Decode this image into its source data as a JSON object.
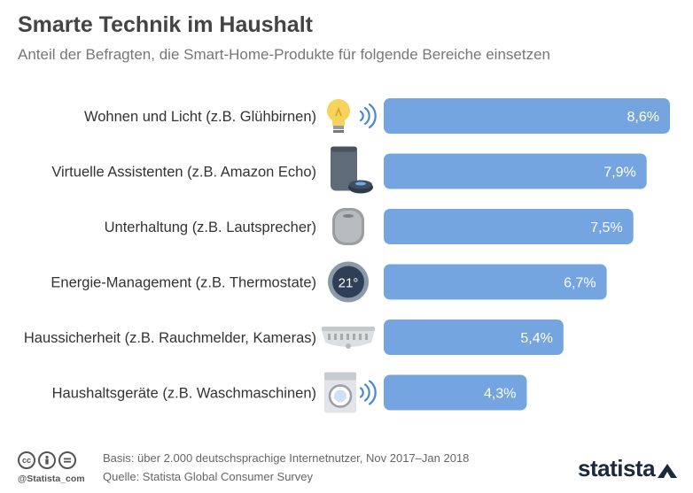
{
  "header": {
    "title": "Smarte Technik im Haushalt",
    "subtitle": "Anteil der Befragten, die Smart-Home-Produkte für folgende Bereiche einsetzen"
  },
  "chart_data": {
    "type": "bar",
    "orientation": "horizontal",
    "title": "Smarte Technik im Haushalt",
    "subtitle": "Anteil der Befragten, die Smart-Home-Produkte für folgende Bereiche einsetzen",
    "xlabel": "",
    "ylabel": "",
    "xlim": [
      0,
      8.6
    ],
    "categories": [
      "Wohnen und Licht (z.B. Glühbirnen)",
      "Virtuelle Assistenten (z.B. Amazon Echo)",
      "Unterhaltung (z.B. Lautsprecher)",
      "Energie-Management (z.B. Thermostate)",
      "Haussicherheit (z.B. Rauchmelder, Kameras)",
      "Haushaltsgeräte (z.B. Waschmaschinen)"
    ],
    "values": [
      8.6,
      7.9,
      7.5,
      6.7,
      5.4,
      4.3
    ],
    "value_labels": [
      "8,6%",
      "7,9%",
      "7,5%",
      "6,7%",
      "5,4%",
      "4,3%"
    ],
    "icons": [
      "lightbulb-icon",
      "smart-speaker-icon",
      "speaker-icon",
      "thermostat-icon",
      "smoke-detector-icon",
      "washing-machine-icon"
    ],
    "thermostat_display": "21°",
    "bar_color": "#75a5e0",
    "grid": false,
    "legend": "none"
  },
  "footer": {
    "basis": "Basis: über 2.000 deutschsprachige Internetnutzer, Nov 2017–Jan 2018",
    "source": "Quelle: Statista Global Consumer Survey",
    "handle": "@Statista_com",
    "cc_icons": [
      "cc",
      "by",
      "nd"
    ],
    "brand": "statista"
  }
}
